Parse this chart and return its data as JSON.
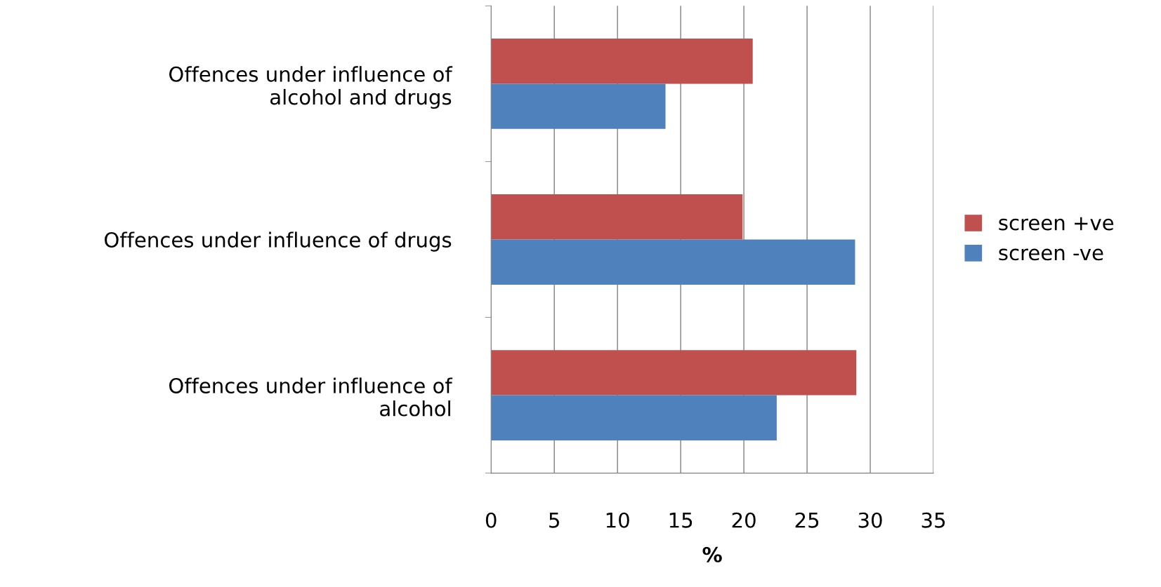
{
  "chart_data": {
    "type": "bar",
    "orientation": "horizontal",
    "xlabel": "%",
    "categories": [
      "Offences under influence of\nalcohol and drugs",
      "Offences under influence of drugs",
      "Offences under influence of\nalcohol"
    ],
    "series": [
      {
        "name": "screen +ve",
        "color": "#c0504d",
        "values": [
          20.7,
          19.9,
          28.9
        ]
      },
      {
        "name": "screen -ve",
        "color": "#4f81bd",
        "values": [
          13.8,
          28.8,
          22.6
        ]
      }
    ],
    "xlim": [
      0,
      35
    ],
    "xticks": [
      0,
      5,
      10,
      15,
      20,
      25,
      30,
      35
    ],
    "grid": "x",
    "legend": "right"
  }
}
